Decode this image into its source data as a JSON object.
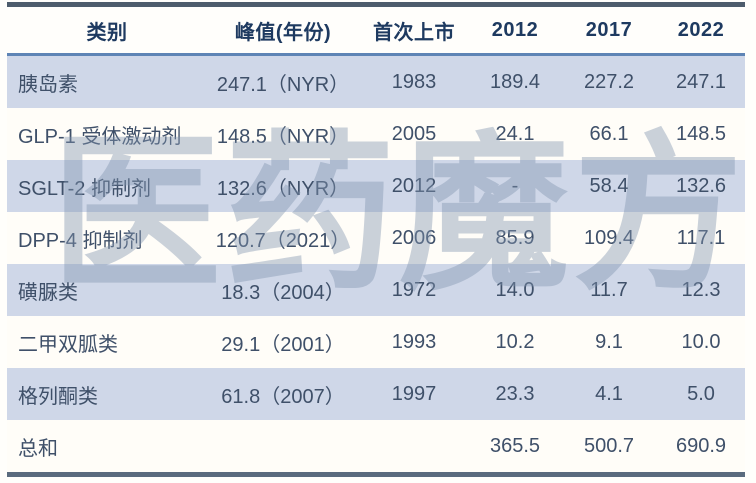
{
  "watermark": {
    "text": "医药魔方"
  },
  "colors": {
    "page_background": "#fffefb",
    "row_highlight": "#cfd7e8",
    "row_plain": "#fffdf8",
    "header_text": "#1e3a60",
    "body_text": "#3f5069",
    "top_border": "#4d5c6c",
    "bottom_border": "#5a6b7e",
    "header_underline": "#5e84b5",
    "watermark_color": "rgba(128,148,175,0.42)"
  },
  "chart_data": {
    "type": "table",
    "columns": [
      "类别",
      "峰值(年份)",
      "首次上市",
      "2012",
      "2017",
      "2022"
    ],
    "rows": [
      [
        "胰岛素",
        "247.1（NYR）",
        "1983",
        "189.4",
        "227.2",
        "247.1"
      ],
      [
        "GLP-1 受体激动剂",
        "148.5（NYR）",
        "2005",
        "24.1",
        "66.1",
        "148.5"
      ],
      [
        "SGLT-2 抑制剂",
        "132.6（NYR）",
        "2012",
        "-",
        "58.4",
        "132.6"
      ],
      [
        "DPP-4 抑制剂",
        "120.7（2021）",
        "2006",
        "85.9",
        "109.4",
        "117.1"
      ],
      [
        "磺脲类",
        "18.3（2004）",
        "1972",
        "14.0",
        "11.7",
        "12.3"
      ],
      [
        "二甲双胍类",
        "29.1（2001）",
        "1993",
        "10.2",
        "9.1",
        "10.0"
      ],
      [
        "格列酮类",
        "61.8（2007）",
        "1997",
        "23.3",
        "4.1",
        "5.0"
      ],
      [
        "总和",
        "",
        "",
        "365.5",
        "500.7",
        "690.9"
      ]
    ]
  }
}
